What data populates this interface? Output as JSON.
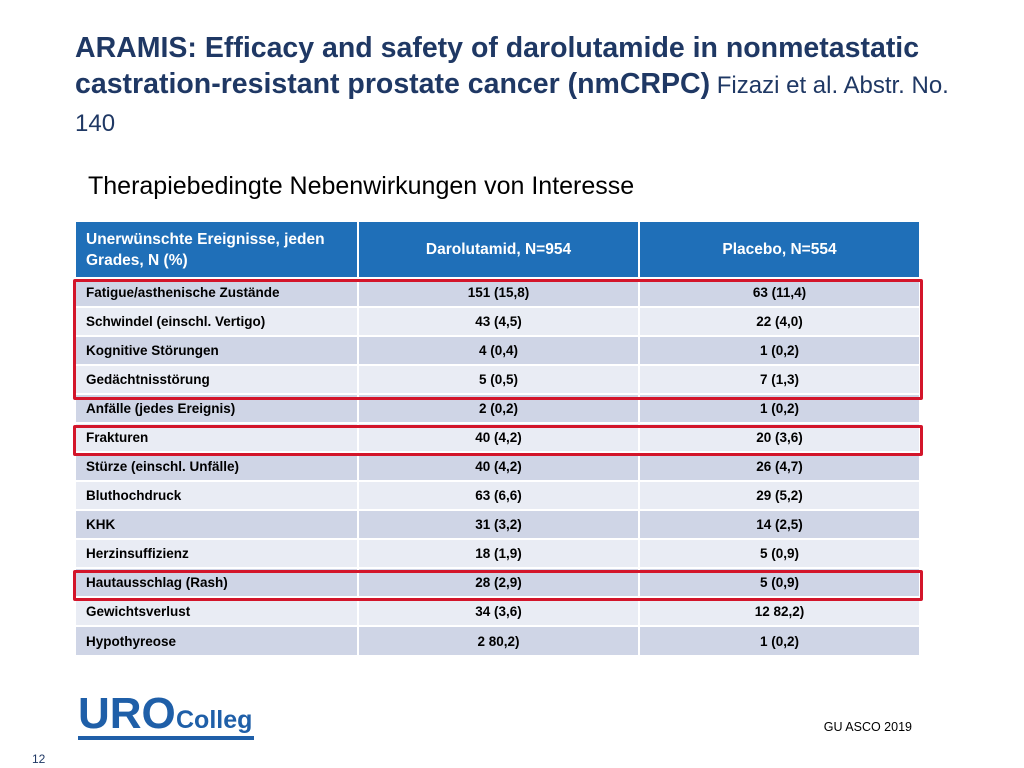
{
  "title": {
    "bold": "ARAMIS: Efficacy and safety of darolutamide in nonmetastatic castration-resistant prostate cancer (nmCRPC)",
    "normal": " Fizazi et al. Abstr. No.  140"
  },
  "subtitle": "Therapiebedingte Nebenwirkungen von Interesse",
  "table": {
    "headers": [
      "Unerwünschte Ereignisse, jeden Grades, N (%)",
      "Darolutamid, N=954",
      "Placebo, N=554"
    ],
    "rows": [
      [
        "Fatigue/asthenische Zustände",
        "151 (15,8)",
        "63 (11,4)"
      ],
      [
        "Schwindel (einschl. Vertigo)",
        "43 (4,5)",
        "22 (4,0)"
      ],
      [
        "Kognitive Störungen",
        "4 (0,4)",
        "1 (0,2)"
      ],
      [
        "Gedächtnisstörung",
        "5 (0,5)",
        "7 (1,3)"
      ],
      [
        "Anfälle (jedes Ereignis)",
        "2 (0,2)",
        "1 (0,2)"
      ],
      [
        "Frakturen",
        "40 (4,2)",
        "20 (3,6)"
      ],
      [
        "Stürze (einschl. Unfälle)",
        "40 (4,2)",
        "26 (4,7)"
      ],
      [
        "Bluthochdruck",
        "63 (6,6)",
        "29 (5,2)"
      ],
      [
        "KHK",
        "31 (3,2)",
        "14 (2,5)"
      ],
      [
        "Herzinsuffizienz",
        "18 (1,9)",
        "5 (0,9)"
      ],
      [
        "Hautausschlag (Rash)",
        "28 (2,9)",
        "5 (0,9)"
      ],
      [
        "Gewichtsverlust",
        "34 (3,6)",
        "12 82,2)"
      ],
      [
        "Hypothyreose",
        "2 80,2)",
        "1 (0,2)"
      ]
    ]
  },
  "logo": {
    "uro": "URO",
    "colleg": "Colleg"
  },
  "source": "GU ASCO 2019",
  "page_number": "12",
  "colors": {
    "accent": "#1f6fb8",
    "title": "#1f3864",
    "highlight": "#d3152a",
    "row_dark": "#cfd5e6",
    "row_light": "#e9ecf4"
  }
}
